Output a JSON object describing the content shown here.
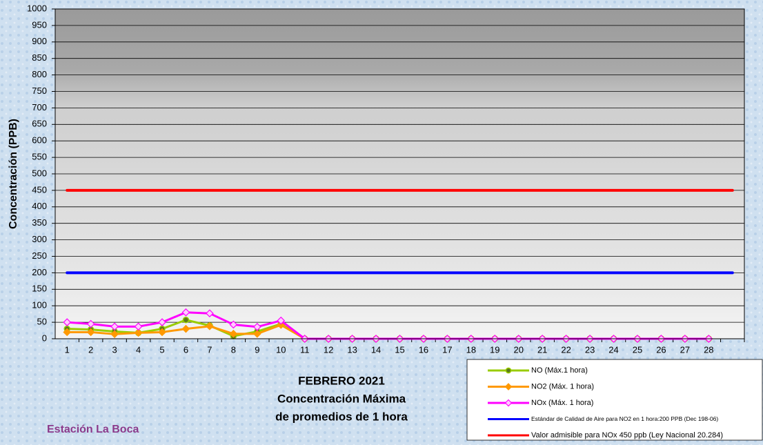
{
  "chart_data": {
    "type": "line",
    "title": "FEBRERO 2021",
    "subtitle": "Concentración Máxima",
    "subtitle2": "de promedios de 1 hora",
    "station": "Estación La Boca",
    "y_label": "Concentración  (PPB)",
    "categories": [
      "1",
      "2",
      "3",
      "4",
      "5",
      "6",
      "7",
      "8",
      "9",
      "10",
      "11",
      "12",
      "13",
      "14",
      "15",
      "16",
      "17",
      "18",
      "19",
      "20",
      "21",
      "22",
      "23",
      "24",
      "25",
      "26",
      "27",
      "28",
      null
    ],
    "series": [
      {
        "name": "NO (Máx.1 hora)",
        "color": "#99cc00",
        "marker": "circle",
        "values": [
          30,
          28,
          22,
          18,
          30,
          57,
          40,
          8,
          22,
          45,
          0,
          0,
          0,
          0,
          0,
          0,
          0,
          0,
          0,
          0,
          0,
          0,
          0,
          0,
          0,
          0,
          0,
          0,
          null
        ]
      },
      {
        "name": "NO2 (Máx. 1 hora)",
        "color": "#ff9900",
        "marker": "diamond",
        "values": [
          20,
          20,
          14,
          18,
          20,
          30,
          38,
          15,
          15,
          42,
          0,
          0,
          0,
          0,
          0,
          0,
          0,
          0,
          0,
          0,
          0,
          0,
          0,
          0,
          0,
          0,
          0,
          0,
          null
        ]
      },
      {
        "name": "NOx (Máx. 1 hora)",
        "color": "#ff00ff",
        "marker": "diamond",
        "values": [
          50,
          45,
          37,
          37,
          50,
          80,
          77,
          43,
          36,
          55,
          0,
          0,
          0,
          0,
          0,
          0,
          0,
          0,
          0,
          0,
          0,
          0,
          0,
          0,
          0,
          0,
          0,
          0,
          null
        ]
      },
      {
        "name": "Estándar de Calidad de Aire para NO2 en 1 hora:200 PPB (Dec 198-06)",
        "color": "#0000ff",
        "marker": "none",
        "values": [
          200,
          200,
          200,
          200,
          200,
          200,
          200,
          200,
          200,
          200,
          200,
          200,
          200,
          200,
          200,
          200,
          200,
          200,
          200,
          200,
          200,
          200,
          200,
          200,
          200,
          200,
          200,
          200,
          200
        ]
      },
      {
        "name": "Valor admisible para NOx 450 ppb (Ley Nacional 20.284)",
        "color": "#ff0000",
        "marker": "none",
        "values": [
          450,
          450,
          450,
          450,
          450,
          450,
          450,
          450,
          450,
          450,
          450,
          450,
          450,
          450,
          450,
          450,
          450,
          450,
          450,
          450,
          450,
          450,
          450,
          450,
          450,
          450,
          450,
          450,
          450
        ]
      }
    ],
    "ylim": [
      0,
      1000
    ],
    "yticks": [
      0,
      50,
      100,
      150,
      200,
      250,
      300,
      350,
      400,
      450,
      500,
      550,
      600,
      650,
      700,
      750,
      800,
      850,
      900,
      950,
      1000
    ],
    "grid": true
  }
}
